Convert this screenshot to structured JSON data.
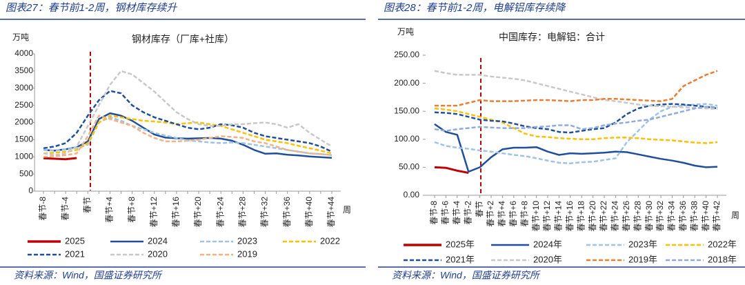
{
  "chart_data": [
    {
      "type": "line",
      "caption": "图表27：春节前1-2周，钢材库存续升",
      "title": "钢材库存（厂库+社库）",
      "ylabel": "万吨",
      "xlabel": "周",
      "source": "资料来源：Wind，国盛证券研究所",
      "categories": [
        "春节-8",
        null,
        "春节-4",
        null,
        "春节",
        null,
        "春节+4",
        null,
        "春节+8",
        null,
        "春节+12",
        null,
        "春节+16",
        null,
        "春节+20",
        null,
        "春节+24",
        null,
        "春节+28",
        null,
        "春节+32",
        null,
        "春节+36",
        null,
        "春节+40",
        null,
        "春节+44"
      ],
      "ylim": [
        0,
        4000
      ],
      "yticks": [
        0,
        500,
        1000,
        1500,
        2000,
        2500,
        3000,
        3500,
        4000
      ],
      "series": [
        {
          "name": "2025",
          "color": "#c00000",
          "dashed": false,
          "values": [
            960,
            945,
            930,
            965,
            null,
            null,
            null,
            null,
            null,
            null,
            null,
            null,
            null,
            null,
            null,
            null,
            null,
            null,
            null,
            null,
            null,
            null,
            null,
            null,
            null,
            null,
            null
          ]
        },
        {
          "name": "2024",
          "color": "#1f4e9c",
          "dashed": false,
          "values": [
            1200,
            1180,
            1220,
            1280,
            1450,
            2100,
            2270,
            2200,
            2050,
            1850,
            1650,
            1560,
            1540,
            1530,
            1540,
            1550,
            1530,
            1470,
            1350,
            1200,
            1090,
            1100,
            1060,
            1040,
            1010,
            990,
            970
          ]
        },
        {
          "name": "2023",
          "color": "#9dc3e6",
          "dashed": true,
          "values": [
            1200,
            1180,
            1220,
            1260,
            1350,
            2000,
            2150,
            2050,
            1900,
            1800,
            1700,
            1620,
            1550,
            1480,
            1450,
            1420,
            1400,
            1420,
            1400,
            1350,
            1300,
            1250,
            1200,
            1150,
            1100,
            1080,
            1050
          ]
        },
        {
          "name": "2022",
          "color": "#ffc000",
          "dashed": true,
          "values": [
            1100,
            1120,
            1150,
            1200,
            1400,
            2000,
            2200,
            2150,
            2100,
            2050,
            2030,
            2000,
            1950,
            1980,
            2000,
            1950,
            1900,
            1800,
            1700,
            1600,
            1500,
            1450,
            1400,
            1320,
            1250,
            1180,
            1100
          ]
        },
        {
          "name": "2021",
          "color": "#1f4e9c",
          "dashed": true,
          "values": [
            1250,
            1300,
            1400,
            1700,
            2200,
            2650,
            2920,
            2850,
            2500,
            2300,
            2150,
            2050,
            1950,
            1850,
            1800,
            1850,
            1950,
            1920,
            1850,
            1700,
            1600,
            1550,
            1500,
            1450,
            1400,
            1300,
            1150
          ]
        },
        {
          "name": "2020",
          "color": "#c8c8c8",
          "dashed": true,
          "values": [
            1100,
            1050,
            1100,
            1300,
            1900,
            2500,
            3100,
            3500,
            3400,
            3150,
            2900,
            2600,
            2300,
            2100,
            1950,
            1900,
            1900,
            1950,
            1950,
            1980,
            2000,
            1950,
            1850,
            1950,
            1700,
            1500,
            1300
          ]
        },
        {
          "name": "2019",
          "color": "#f4b183",
          "dashed": true,
          "values": [
            1000,
            1020,
            1050,
            1100,
            1600,
            2200,
            2100,
            2000,
            1900,
            1700,
            1550,
            1450,
            1450,
            1470,
            1500,
            1550,
            1600,
            1580,
            1550,
            1450,
            1400,
            1300,
            1200,
            1150,
            1100,
            1080,
            1050
          ]
        }
      ]
    },
    {
      "type": "line",
      "caption": "图表28：春节前1-2周，电解铝库存续降",
      "title": "中国库存：电解铝：合计",
      "ylabel": "万吨",
      "xlabel": "周",
      "source": "资料来源：Wind，国盛证券研究所",
      "categories": [
        "春节-8",
        "春节-6",
        "春节-4",
        "春节-2",
        "春节",
        "春节+2",
        "春节+4",
        "春节+6",
        "春节+8",
        "春节+10",
        "春节+12",
        "春节+14",
        "春节+16",
        "春节+18",
        "春节+20",
        "春节+22",
        "春节+24",
        "春节+26",
        "春节+28",
        "春节+30",
        "春节+32",
        "春节+34",
        "春节+36",
        "春节+38",
        "春节+40",
        "春节+42"
      ],
      "ylim": [
        0,
        250
      ],
      "yticks": [
        {
          "value": 0,
          "label": "0.00"
        },
        {
          "value": 50,
          "label": "50.00"
        },
        {
          "value": 100,
          "label": "100.00"
        },
        {
          "value": 150,
          "label": "150.00"
        },
        {
          "value": 200,
          "label": "200.00"
        },
        {
          "value": 250,
          "label": "250.00"
        }
      ],
      "series": [
        {
          "name": "2025年",
          "color": "#c00000",
          "dashed": false,
          "values": [
            50,
            49,
            44,
            40,
            null,
            null,
            null,
            null,
            null,
            null,
            null,
            null,
            null,
            null,
            null,
            null,
            null,
            null,
            null,
            null,
            null,
            null,
            null,
            null,
            null,
            null
          ]
        },
        {
          "name": "2024年",
          "color": "#1f4e9c",
          "dashed": false,
          "values": [
            127,
            113,
            108,
            42,
            50,
            68,
            82,
            85,
            85,
            86,
            78,
            72,
            75,
            74,
            75,
            76,
            78,
            77,
            73,
            69,
            65,
            62,
            58,
            53,
            50,
            51
          ]
        },
        {
          "name": "2023年",
          "color": "#9dc3e6",
          "dashed": true,
          "values": [
            95,
            88,
            85,
            83,
            80,
            78,
            75,
            72,
            70,
            66,
            62,
            58,
            57,
            59,
            60,
            63,
            66,
            95,
            115,
            135,
            150,
            158,
            160,
            162,
            163,
            160
          ]
        },
        {
          "name": "2022年",
          "color": "#ffc000",
          "dashed": true,
          "values": [
            155,
            153,
            150,
            145,
            140,
            135,
            130,
            120,
            110,
            105,
            104,
            102,
            101,
            100,
            100,
            102,
            103,
            103,
            102,
            100,
            99,
            98,
            96,
            94,
            93,
            95
          ]
        },
        {
          "name": "2021年",
          "color": "#1f4e9c",
          "dashed": true,
          "values": [
            148,
            147,
            145,
            140,
            135,
            133,
            132,
            128,
            123,
            120,
            118,
            113,
            112,
            115,
            118,
            120,
            130,
            145,
            155,
            160,
            162,
            163,
            162,
            160,
            158,
            155
          ]
        },
        {
          "name": "2020年",
          "color": "#c8c8c8",
          "dashed": true,
          "values": [
            222,
            218,
            215,
            215,
            215,
            212,
            210,
            208,
            205,
            200,
            195,
            190,
            185,
            180,
            175,
            170,
            168,
            165,
            162,
            160,
            159,
            158,
            157,
            156,
            155,
            154
          ]
        },
        {
          "name": "2019年",
          "color": "#ed7d31",
          "dashed": true,
          "values": [
            160,
            160,
            160,
            165,
            170,
            168,
            168,
            168,
            169,
            170,
            170,
            169,
            168,
            170,
            170,
            172,
            172,
            171,
            170,
            169,
            168,
            172,
            195,
            205,
            215,
            222
          ]
        },
        {
          "name": "2018年",
          "color": "#8faadc",
          "dashed": true,
          "values": [
            118,
            115,
            118,
            120,
            122,
            121,
            120,
            120,
            120,
            122,
            123,
            125,
            125,
            118,
            120,
            125,
            128,
            130,
            133,
            135,
            140,
            145,
            150,
            155,
            158,
            157
          ]
        }
      ]
    }
  ]
}
